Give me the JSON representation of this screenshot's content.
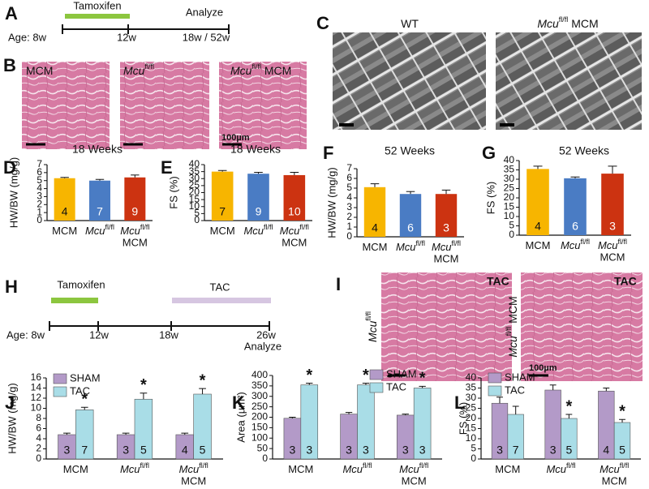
{
  "panel_A": {
    "label": "A",
    "bar_label": "Tamoxifen",
    "end_label": "Analyze",
    "axis_labels": [
      "Age: 8w",
      "12w",
      "18w / 52w"
    ]
  },
  "panel_B": {
    "label": "B",
    "images": [
      {
        "text": "MCM"
      },
      {
        "text": "Mcu",
        "sup": "fl/fl"
      },
      {
        "text": "Mcu",
        "sup": "fl/fl",
        "suffix": " MCM"
      }
    ],
    "scale_bar": "100µm"
  },
  "panel_C": {
    "label": "C",
    "images": [
      {
        "text": "WT"
      },
      {
        "text": "Mcu",
        "sup": "fl/fl",
        "suffix": " MCM"
      }
    ]
  },
  "panel_H": {
    "label": "H",
    "bar_labels": [
      "Tamoxifen",
      "TAC"
    ],
    "axis_labels": [
      "Age: 8w",
      "12w",
      "18w",
      "26w"
    ],
    "end_label": "Analyze"
  },
  "panel_I": {
    "label": "I",
    "images": [
      {
        "tag": "TAC",
        "side": {
          "text": "Mcu",
          "sup": "fl/fl"
        }
      },
      {
        "tag": "TAC",
        "side": {
          "text": "Mcu",
          "sup": "fl/fl",
          "suffix": " MCM"
        }
      }
    ],
    "scale_bar": "100µm"
  },
  "chart_data": [
    {
      "panel": "D",
      "type": "bar",
      "title": "18 Weeks",
      "ylabel": "HW/BW (mg/g)",
      "categories": [
        {
          "text": "MCM"
        },
        {
          "text": "Mcu",
          "sup": "fl/fl"
        },
        {
          "text": "Mcu",
          "sup": "fl/fl",
          "line2": "MCM"
        }
      ],
      "values": [
        5.3,
        5.0,
        5.4
      ],
      "errors": [
        0.1,
        0.15,
        0.3
      ],
      "n_labels": [
        4,
        7,
        9
      ],
      "colors": [
        "#f7b500",
        "#4a7cc4",
        "#cc3311"
      ],
      "ylim": [
        0,
        7
      ],
      "yticks": [
        0,
        1,
        2,
        3,
        4,
        5,
        6,
        7
      ]
    },
    {
      "panel": "E",
      "type": "bar",
      "title": "18 Weeks",
      "ylabel": "FS (%)",
      "categories": [
        {
          "text": "MCM"
        },
        {
          "text": "Mcu",
          "sup": "fl/fl"
        },
        {
          "text": "Mcu",
          "sup": "fl/fl",
          "line2": "MCM"
        }
      ],
      "values": [
        35,
        33.5,
        32.5
      ],
      "errors": [
        0.8,
        1,
        2
      ],
      "n_labels": [
        7,
        9,
        10
      ],
      "colors": [
        "#f7b500",
        "#4a7cc4",
        "#cc3311"
      ],
      "ylim": [
        0,
        40
      ],
      "yticks": [
        0,
        5,
        10,
        15,
        20,
        25,
        30,
        35,
        40
      ]
    },
    {
      "panel": "F",
      "type": "bar",
      "title": "52 Weeks",
      "ylabel": "HW/BW (mg/g)",
      "categories": [
        {
          "text": "MCM"
        },
        {
          "text": "Mcu",
          "sup": "fl/fl"
        },
        {
          "text": "Mcu",
          "sup": "fl/fl",
          "line2": "MCM"
        }
      ],
      "values": [
        5.1,
        4.4,
        4.4
      ],
      "errors": [
        0.35,
        0.25,
        0.4
      ],
      "n_labels": [
        4,
        6,
        3
      ],
      "colors": [
        "#f7b500",
        "#4a7cc4",
        "#cc3311"
      ],
      "ylim": [
        0,
        7
      ],
      "yticks": [
        0,
        1,
        2,
        3,
        4,
        5,
        6,
        7
      ]
    },
    {
      "panel": "G",
      "type": "bar",
      "title": "52 Weeks",
      "ylabel": "FS (%)",
      "categories": [
        {
          "text": "MCM"
        },
        {
          "text": "Mcu",
          "sup": "fl/fl"
        },
        {
          "text": "Mcu",
          "sup": "fl/fl",
          "line2": "MCM"
        }
      ],
      "values": [
        35.5,
        30.5,
        33
      ],
      "errors": [
        1.5,
        0.7,
        4
      ],
      "n_labels": [
        4,
        6,
        3
      ],
      "colors": [
        "#f7b500",
        "#4a7cc4",
        "#cc3311"
      ],
      "ylim": [
        0,
        40
      ],
      "yticks": [
        0,
        5,
        10,
        15,
        20,
        25,
        30,
        35,
        40
      ]
    },
    {
      "panel": "J",
      "type": "bar",
      "ylabel": "HW/BW (mg/g)",
      "categories": [
        {
          "text": "MCM"
        },
        {
          "text": "Mcu",
          "sup": "fl/fl"
        },
        {
          "text": "Mcu",
          "sup": "fl/fl",
          "line2": "MCM"
        }
      ],
      "series": [
        {
          "name": "SHAM",
          "color": "#b39ac8",
          "values": [
            4.8,
            4.8,
            4.8
          ],
          "errors": [
            0.3,
            0.3,
            0.3
          ],
          "n_labels": [
            3,
            3,
            4
          ]
        },
        {
          "name": "TAC",
          "color": "#a9dde7",
          "values": [
            9.7,
            11.8,
            12.8
          ],
          "errors": [
            0.5,
            1.2,
            1.1
          ],
          "n_labels": [
            7,
            5,
            5
          ],
          "markers": [
            "*",
            "*",
            "*"
          ]
        }
      ],
      "ylim": [
        0,
        16
      ],
      "yticks": [
        0,
        2,
        4,
        6,
        8,
        10,
        12,
        14,
        16
      ]
    },
    {
      "panel": "K",
      "type": "bar",
      "ylabel": "Area (µm²)",
      "categories": [
        {
          "text": "MCM"
        },
        {
          "text": "Mcu",
          "sup": "fl/fl"
        },
        {
          "text": "Mcu",
          "sup": "fl/fl",
          "line2": "MCM"
        }
      ],
      "series": [
        {
          "name": "SHAM",
          "color": "#b39ac8",
          "values": [
            195,
            215,
            210
          ],
          "errors": [
            5,
            8,
            5
          ],
          "n_labels": [
            3,
            3,
            3
          ]
        },
        {
          "name": "TAC",
          "color": "#a9dde7",
          "values": [
            355,
            355,
            340
          ],
          "errors": [
            8,
            8,
            8
          ],
          "n_labels": [
            3,
            3,
            3
          ],
          "markers": [
            "*",
            "*",
            "*"
          ]
        }
      ],
      "ylim": [
        0,
        400
      ],
      "yticks": [
        0,
        50,
        100,
        150,
        200,
        250,
        300,
        350,
        400
      ]
    },
    {
      "panel": "L",
      "type": "bar",
      "ylabel": "FS (%)",
      "categories": [
        {
          "text": "MCM"
        },
        {
          "text": "Mcu",
          "sup": "fl/fl"
        },
        {
          "text": "Mcu",
          "sup": "fl/fl",
          "line2": "MCM"
        }
      ],
      "series": [
        {
          "name": "SHAM",
          "color": "#b39ac8",
          "values": [
            27.5,
            34,
            33.5
          ],
          "errors": [
            3,
            2.5,
            1.5
          ],
          "n_labels": [
            3,
            3,
            4
          ]
        },
        {
          "name": "TAC",
          "color": "#a9dde7",
          "values": [
            22,
            20,
            18
          ],
          "errors": [
            4,
            2,
            1.5
          ],
          "n_labels": [
            7,
            5,
            5
          ],
          "markers": [
            null,
            "*",
            "*"
          ]
        }
      ],
      "ylim": [
        0,
        40
      ],
      "yticks": [
        0,
        5,
        10,
        15,
        20,
        25,
        30,
        35,
        40
      ]
    }
  ]
}
